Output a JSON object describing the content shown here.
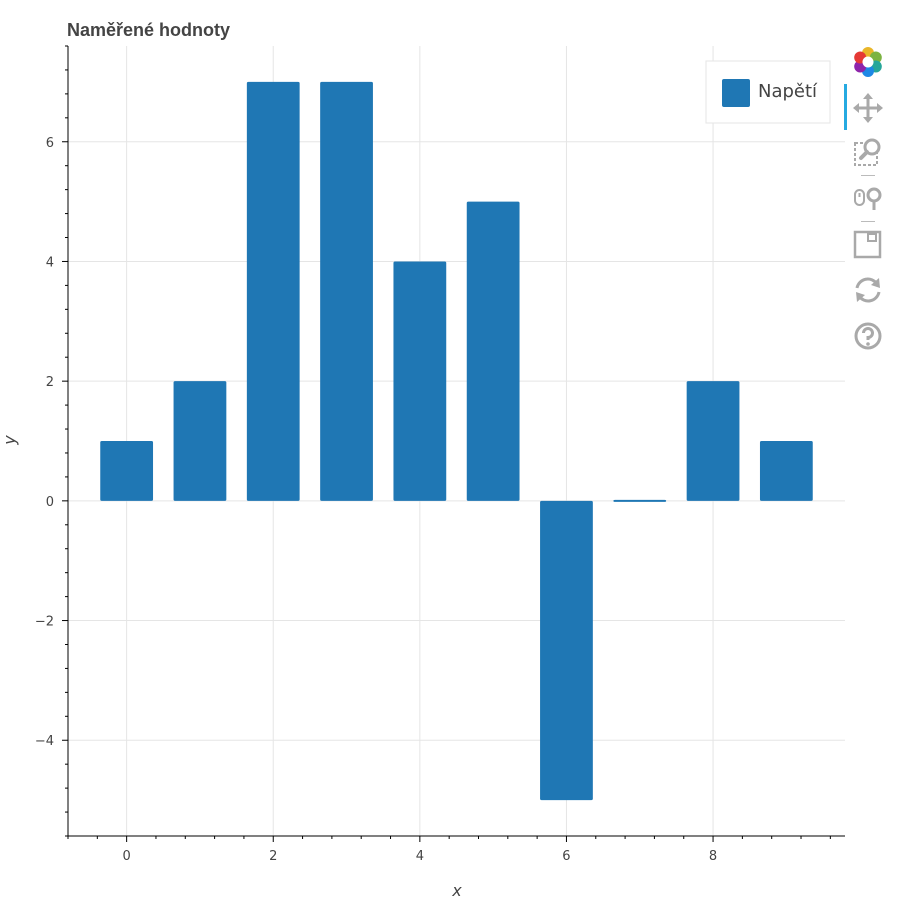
{
  "chart_data": {
    "type": "bar",
    "title": "Naměřené hodnoty",
    "xlabel": "x",
    "ylabel": "y",
    "x": [
      0,
      1,
      2,
      3,
      4,
      5,
      6,
      7,
      8,
      9
    ],
    "series": [
      {
        "name": "Napětí",
        "values": [
          1,
          2,
          7,
          7,
          4,
          5,
          -5,
          0,
          2,
          1
        ],
        "color": "#1f77b4"
      }
    ],
    "xlim": [
      -0.8,
      9.8
    ],
    "ylim": [
      -5.6,
      7.6
    ],
    "x_ticks": [
      0,
      2,
      4,
      6,
      8
    ],
    "y_ticks": [
      -4,
      -2,
      0,
      2,
      4,
      6
    ],
    "tick_labels": {
      "x": [
        "0",
        "2",
        "4",
        "6",
        "8"
      ],
      "y": [
        "−4",
        "−2",
        "0",
        "2",
        "4",
        "6"
      ]
    },
    "grid": true,
    "legend_position": "top-right"
  },
  "toolbar": {
    "tools": [
      {
        "name": "bokeh-logo-icon",
        "active": false
      },
      {
        "name": "pan-tool-icon",
        "active": true
      },
      {
        "name": "box-zoom-tool-icon",
        "active": false
      },
      {
        "name": "wheel-zoom-tool-icon",
        "active": false
      },
      {
        "name": "save-tool-icon",
        "active": false
      },
      {
        "name": "reset-tool-icon",
        "active": false
      },
      {
        "name": "help-tool-icon",
        "active": false
      }
    ]
  }
}
